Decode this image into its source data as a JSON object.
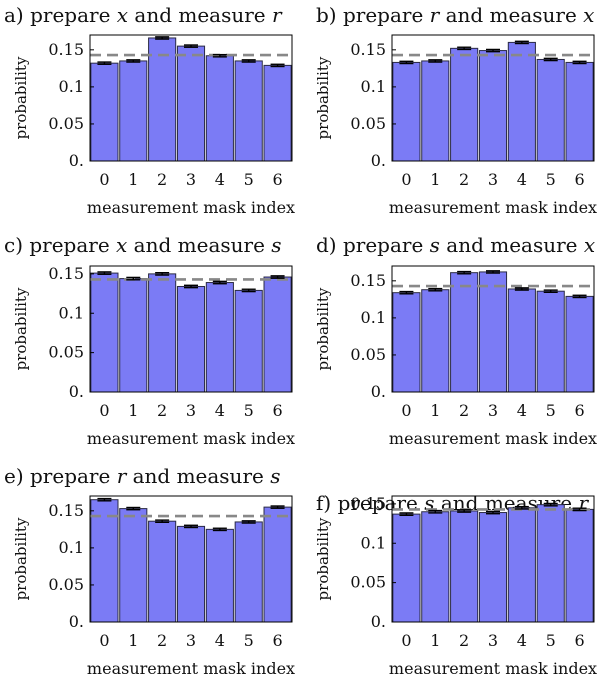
{
  "chart_data": [
    {
      "type": "bar",
      "panel": "a)",
      "title_parts": [
        "a) prepare ",
        "x",
        " and measure ",
        "r"
      ],
      "xlabel": "measurement mask index",
      "ylabel": "probability",
      "categories": [
        "0",
        "1",
        "2",
        "3",
        "4",
        "5",
        "6"
      ],
      "values": [
        0.132,
        0.135,
        0.166,
        0.155,
        0.142,
        0.135,
        0.129
      ],
      "errors": [
        0.0015,
        0.0015,
        0.0015,
        0.0015,
        0.0015,
        0.0015,
        0.0015
      ],
      "reference_line": 0.1429,
      "ylim": [
        0,
        0.17
      ],
      "yticks": [
        0,
        0.05,
        0.1,
        0.15
      ],
      "ytick_labels": [
        "0.",
        "0.05",
        "0.1",
        "0.15"
      ]
    },
    {
      "type": "bar",
      "panel": "b)",
      "title_parts": [
        "b) prepare ",
        "r",
        " and measure ",
        "x"
      ],
      "xlabel": "measurement mask index",
      "ylabel": "probability",
      "categories": [
        "0",
        "1",
        "2",
        "3",
        "4",
        "5",
        "6"
      ],
      "values": [
        0.133,
        0.135,
        0.152,
        0.149,
        0.16,
        0.137,
        0.133
      ],
      "errors": [
        0.0015,
        0.0015,
        0.0015,
        0.0015,
        0.0015,
        0.0015,
        0.0015
      ],
      "reference_line": 0.1429,
      "ylim": [
        0,
        0.17
      ],
      "yticks": [
        0,
        0.05,
        0.1,
        0.15
      ],
      "ytick_labels": [
        "0.",
        "0.05",
        "0.1",
        "0.15"
      ]
    },
    {
      "type": "bar",
      "panel": "c)",
      "title_parts": [
        "c) prepare ",
        "x",
        " and measure ",
        "s"
      ],
      "xlabel": "measurement mask index",
      "ylabel": "probability",
      "categories": [
        "0",
        "1",
        "2",
        "3",
        "4",
        "5",
        "6"
      ],
      "values": [
        0.151,
        0.144,
        0.15,
        0.134,
        0.139,
        0.129,
        0.146
      ],
      "errors": [
        0.0015,
        0.0015,
        0.0015,
        0.0015,
        0.0015,
        0.0015,
        0.0015
      ],
      "reference_line": 0.1429,
      "ylim": [
        0,
        0.16
      ],
      "yticks": [
        0,
        0.05,
        0.1,
        0.15
      ],
      "ytick_labels": [
        "0.",
        "0.05",
        "0.1",
        "0.15"
      ]
    },
    {
      "type": "bar",
      "panel": "d)",
      "title_parts": [
        "d) prepare ",
        "s",
        " and measure ",
        "x"
      ],
      "xlabel": "measurement mask index",
      "ylabel": "probability",
      "categories": [
        "0",
        "1",
        "2",
        "3",
        "4",
        "5",
        "6"
      ],
      "values": [
        0.134,
        0.138,
        0.161,
        0.162,
        0.139,
        0.136,
        0.129
      ],
      "errors": [
        0.0015,
        0.0015,
        0.0015,
        0.0015,
        0.0015,
        0.0015,
        0.0015
      ],
      "reference_line": 0.1429,
      "ylim": [
        0,
        0.17
      ],
      "yticks": [
        0,
        0.05,
        0.1,
        0.15
      ],
      "ytick_labels": [
        "0.",
        "0.05",
        "0.1",
        "0.15"
      ]
    },
    {
      "type": "bar",
      "panel": "e)",
      "title_parts": [
        "e) prepare ",
        "r",
        " and measure ",
        "s"
      ],
      "xlabel": "measurement mask index",
      "ylabel": "probability",
      "categories": [
        "0",
        "1",
        "2",
        "3",
        "4",
        "5",
        "6"
      ],
      "values": [
        0.165,
        0.153,
        0.136,
        0.129,
        0.125,
        0.135,
        0.155
      ],
      "errors": [
        0.0015,
        0.0015,
        0.0015,
        0.0015,
        0.0015,
        0.0015,
        0.0015
      ],
      "reference_line": 0.1429,
      "ylim": [
        0,
        0.17
      ],
      "yticks": [
        0,
        0.05,
        0.1,
        0.15
      ],
      "ytick_labels": [
        "0.",
        "0.05",
        "0.1",
        "0.15"
      ]
    },
    {
      "type": "bar",
      "panel": "f)",
      "title_parts": [
        "f) prepare ",
        "s",
        " and measure ",
        "r"
      ],
      "xlabel": "measurement mask index",
      "ylabel": "probability",
      "categories": [
        "0",
        "1",
        "2",
        "3",
        "4",
        "5",
        "6"
      ],
      "values": [
        0.137,
        0.14,
        0.141,
        0.139,
        0.145,
        0.149,
        0.143
      ],
      "errors": [
        0.0015,
        0.0015,
        0.0015,
        0.0015,
        0.0015,
        0.0015,
        0.0015
      ],
      "reference_line": 0.1429,
      "ylim": [
        0,
        0.16
      ],
      "yticks": [
        0,
        0.05,
        0.1,
        0.15
      ],
      "ytick_labels": [
        "0.",
        "0.05",
        "0.1",
        "0.15"
      ]
    }
  ],
  "style": {
    "bar_fill": "#7b7bf5",
    "bar_stroke": "#2a2a44",
    "reference_line_color": "#888888",
    "error_bar_color": "#000000",
    "axis_color": "#000000"
  }
}
